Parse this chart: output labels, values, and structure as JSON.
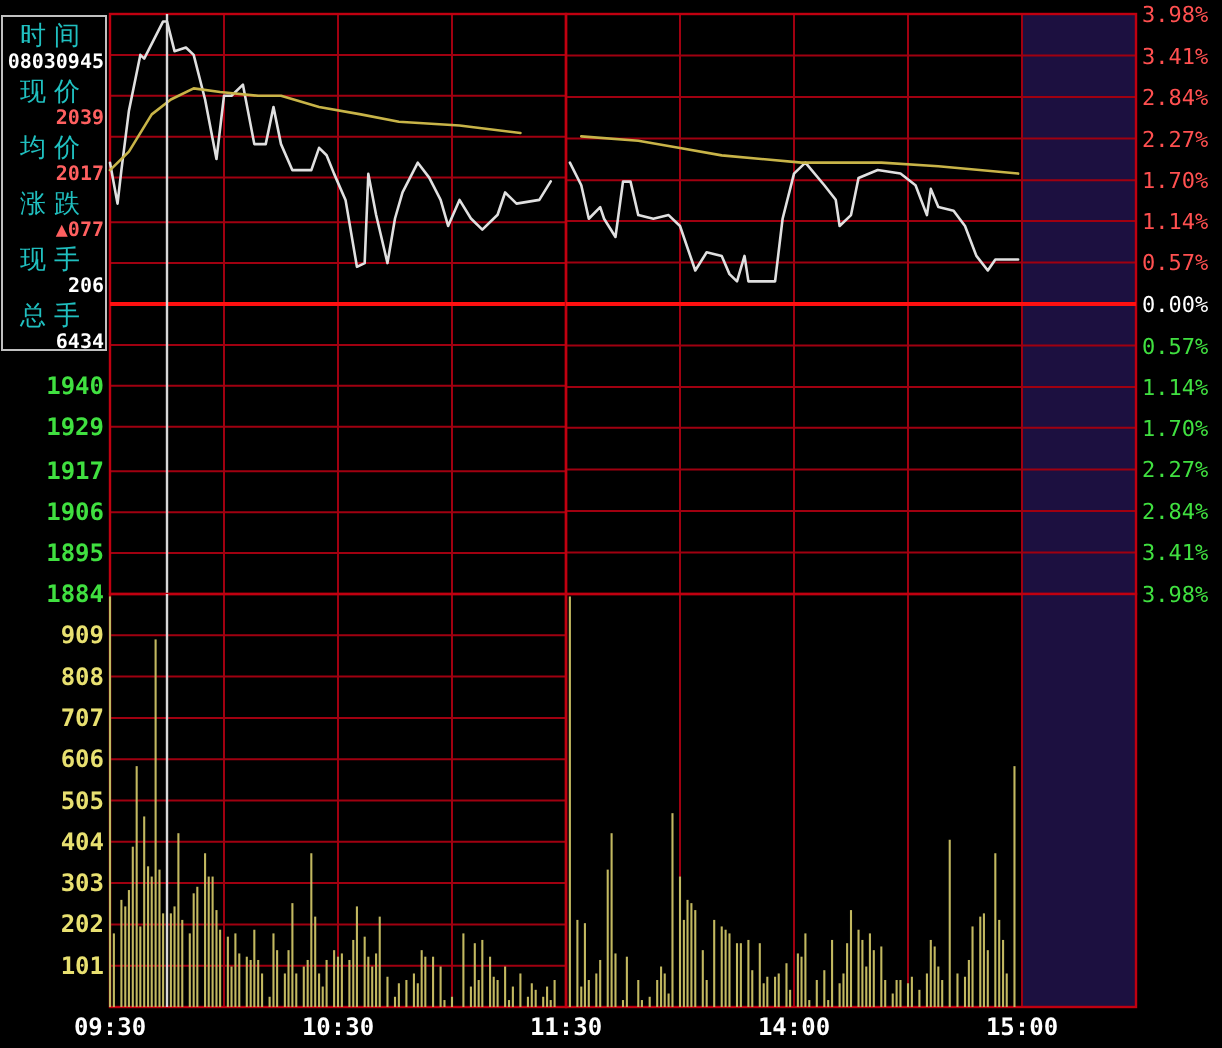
{
  "chart_data": [
    {
      "type": "line",
      "xlim": [
        9.5,
        11.5
      ],
      "ylim": [
        1884,
        2040
      ],
      "xticks": [
        {
          "value": 9.5,
          "label": null
        },
        {
          "value": 10,
          "label": null
        },
        {
          "value": 10.5,
          "label": null
        },
        {
          "value": 11,
          "label": null
        },
        {
          "value": 11.5,
          "label": null
        }
      ],
      "yticks": [
        1884,
        1895,
        1906,
        1917,
        1929,
        1940,
        {
          "value": 1951,
          "label": null
        },
        {
          "value": 1962,
          "label": null
        },
        {
          "value": 1973,
          "label": null
        },
        {
          "value": 1984,
          "label": null
        },
        {
          "value": 1996,
          "label": null
        },
        {
          "value": 2007,
          "label": null
        },
        {
          "value": 2018,
          "label": null
        },
        {
          "value": 2029,
          "label": null
        },
        {
          "value": 2040,
          "label": null
        }
      ],
      "tick_labels": "y",
      "grid": true,
      "series": [
        {
          "color": "#e0e0e0",
          "x": [
            9.5,
            9.533,
            9.55,
            9.583,
            9.633,
            9.65,
            9.733,
            9.75,
            9.783,
            9.833,
            9.867,
            9.917,
            9.967,
            10,
            10.033,
            10.083,
            10.133,
            10.183,
            10.217,
            10.25,
            10.3,
            10.383,
            10.417,
            10.45,
            10.483,
            10.533,
            10.583,
            10.617,
            10.633,
            10.667,
            10.717,
            10.75,
            10.783,
            10.85,
            10.9,
            10.95,
            10.983,
            11.033,
            11.083,
            11.133,
            11.2,
            11.233,
            11.283,
            11.383,
            11.433
          ],
          "values": [
            2000,
            1989,
            1998,
            2014,
            2029,
            2028,
            2038,
            2038,
            2030,
            2031,
            2029,
            2017,
            2001,
            2018,
            2018,
            2021,
            2005,
            2005,
            2015,
            2005,
            1998,
            1998,
            2004,
            2002,
            1997,
            1990,
            1972,
            1973,
            1997,
            1986,
            1973,
            1985,
            1992,
            2000,
            1996,
            1990,
            1983,
            1990,
            1985,
            1982,
            1986,
            1992,
            1989,
            1990,
            1995
          ]
        },
        {
          "color": "#c8b448",
          "x": [
            9.5,
            9.583,
            9.683,
            9.767,
            9.867,
            9.983,
            10.15,
            10.25,
            10.417,
            10.6,
            10.767,
            11.033,
            11.3
          ],
          "values": [
            1998,
            2003,
            2013,
            2017,
            2020,
            2019,
            2018,
            2018,
            2015,
            2013,
            2011,
            2010,
            2008
          ]
        }
      ],
      "ref_lines": [
        {
          "axis": "y",
          "value": 1962,
          "color": "#ff1010"
        },
        {
          "axis": "x",
          "value": 9.75,
          "color": "#d8d8d8"
        }
      ]
    },
    {
      "type": "line",
      "xlim": [
        13,
        15.5
      ],
      "ylim": [
        -3.98,
        3.98
      ],
      "xticks": [
        {
          "value": 13.5,
          "label": null
        },
        {
          "value": 14,
          "label": null
        },
        {
          "value": 14.5,
          "label": null
        },
        {
          "value": 15,
          "label": null
        }
      ],
      "yticks": [
        {
          "value": 3.98,
          "label": "3.98%"
        },
        {
          "value": 3.41,
          "label": "3.41%"
        },
        {
          "value": 2.84,
          "label": "2.84%"
        },
        {
          "value": 2.27,
          "label": "2.27%"
        },
        {
          "value": 1.7,
          "label": "1.70%"
        },
        {
          "value": 1.14,
          "label": "1.14%"
        },
        {
          "value": 0.57,
          "label": "0.57%"
        },
        {
          "value": 0,
          "label": "0.00%"
        },
        {
          "value": -0.57,
          "label": "0.57%"
        },
        {
          "value": -1.14,
          "label": "1.14%"
        },
        {
          "value": -1.7,
          "label": "1.70%"
        },
        {
          "value": -2.27,
          "label": "2.27%"
        },
        {
          "value": -2.84,
          "label": "2.84%"
        },
        {
          "value": -3.41,
          "label": "3.41%"
        },
        {
          "value": -3.98,
          "label": "3.98%"
        }
      ],
      "tick_labels": "y",
      "grid": true,
      "series": [
        {
          "color": "#e0e0e0",
          "x": [
            13.017,
            13.067,
            13.1,
            13.15,
            13.167,
            13.217,
            13.25,
            13.283,
            13.317,
            13.383,
            13.45,
            13.5,
            13.567,
            13.617,
            13.683,
            13.717,
            13.75,
            13.783,
            13.8,
            13.85,
            13.917,
            13.95,
            14,
            14.05,
            14.133,
            14.183,
            14.2,
            14.25,
            14.283,
            14.367,
            14.467,
            14.533,
            14.583,
            14.6,
            14.633,
            14.7,
            14.75,
            14.8,
            14.85,
            14.883,
            14.983
          ],
          "values": [
            1.94,
            1.63,
            1.17,
            1.33,
            1.17,
            0.92,
            1.68,
            1.68,
            1.22,
            1.17,
            1.22,
            1.07,
            0.46,
            0.71,
            0.66,
            0.41,
            0.31,
            0.66,
            0.31,
            0.31,
            0.31,
            1.17,
            1.79,
            1.94,
            1.63,
            1.43,
            1.07,
            1.22,
            1.73,
            1.84,
            1.79,
            1.63,
            1.22,
            1.58,
            1.33,
            1.28,
            1.07,
            0.66,
            0.46,
            0.61,
            0.61
          ]
        },
        {
          "color": "#c8b448",
          "x": [
            13.067,
            13.317,
            13.5,
            13.683,
            14.033,
            14.383,
            14.633,
            14.983
          ],
          "values": [
            2.3,
            2.24,
            2.14,
            2.04,
            1.94,
            1.94,
            1.89,
            1.79
          ]
        }
      ],
      "ref_lines": [
        {
          "axis": "y",
          "value": 0,
          "color": "#ff1010"
        }
      ],
      "bands": [
        {
          "axis": "x",
          "from": 15,
          "to": 15.5,
          "color": "#1c1040"
        }
      ]
    },
    {
      "type": "bar",
      "xlim": [
        9.5,
        11.5
      ],
      "ylim": [
        0,
        1010
      ],
      "xticks": [
        {
          "value": 9.5,
          "label": "09:30"
        },
        {
          "value": 10,
          "label": null
        },
        {
          "value": 10.5,
          "label": "10:30"
        },
        {
          "value": 11,
          "label": null
        },
        {
          "value": 11.5,
          "label": "11:30"
        }
      ],
      "yticks": [
        101,
        202,
        303,
        404,
        505,
        606,
        707,
        808,
        909
      ],
      "grid": true,
      "x": [
        9.5,
        9.517,
        9.55,
        9.567,
        9.583,
        9.6,
        9.617,
        9.633,
        9.65,
        9.667,
        9.683,
        9.7,
        9.717,
        9.733,
        9.767,
        9.783,
        9.8,
        9.817,
        9.85,
        9.867,
        9.883,
        9.917,
        9.933,
        9.95,
        9.967,
        9.983,
        10.017,
        10.033,
        10.05,
        10.067,
        10.1,
        10.117,
        10.133,
        10.15,
        10.167,
        10.2,
        10.217,
        10.233,
        10.267,
        10.283,
        10.3,
        10.317,
        10.35,
        10.367,
        10.383,
        10.4,
        10.417,
        10.433,
        10.45,
        10.483,
        10.5,
        10.517,
        10.55,
        10.567,
        10.583,
        10.617,
        10.633,
        10.65,
        10.667,
        10.683,
        10.717,
        10.75,
        10.767,
        10.8,
        10.833,
        10.85,
        10.867,
        10.883,
        10.917,
        10.95,
        10.967,
        11,
        11.05,
        11.083,
        11.1,
        11.117,
        11.133,
        11.167,
        11.183,
        11.2,
        11.233,
        11.25,
        11.267,
        11.3,
        11.333,
        11.35,
        11.367,
        11.4,
        11.417,
        11.433,
        11.45
      ],
      "values": [
        1004,
        180,
        262,
        246,
        286,
        392,
        589,
        197,
        466,
        344,
        319,
        899,
        336,
        229,
        229,
        246,
        425,
        213,
        180,
        278,
        294,
        376,
        319,
        319,
        237,
        189,
        172,
        99,
        180,
        131,
        123,
        115,
        189,
        115,
        82,
        25,
        180,
        139,
        82,
        139,
        254,
        82,
        99,
        115,
        376,
        221,
        82,
        50,
        115,
        139,
        123,
        131,
        115,
        164,
        246,
        172,
        123,
        99,
        131,
        221,
        74,
        25,
        58,
        66,
        82,
        58,
        139,
        123,
        123,
        99,
        17,
        25,
        180,
        50,
        156,
        66,
        164,
        123,
        74,
        66,
        99,
        17,
        50,
        82,
        25,
        58,
        42,
        25,
        50,
        17,
        66
      ],
      "color": "#c2b860",
      "ref_lines": [
        {
          "axis": "x",
          "value": 9.75,
          "color": "#d8d8d8"
        }
      ]
    },
    {
      "type": "bar",
      "xlim": [
        13,
        15.5
      ],
      "ylim": [
        0,
        1010
      ],
      "xticks": [
        {
          "value": 13.5,
          "label": null
        },
        {
          "value": 14,
          "label": "14:00"
        },
        {
          "value": 14.5,
          "label": null
        },
        {
          "value": 15,
          "label": "15:00"
        }
      ],
      "tick_labels": "x",
      "grid": true,
      "x": [
        13.017,
        13.05,
        13.067,
        13.083,
        13.1,
        13.133,
        13.15,
        13.183,
        13.2,
        13.217,
        13.25,
        13.267,
        13.317,
        13.333,
        13.367,
        13.4,
        13.417,
        13.433,
        13.45,
        13.467,
        13.5,
        13.517,
        13.533,
        13.55,
        13.567,
        13.6,
        13.617,
        13.65,
        13.683,
        13.7,
        13.717,
        13.75,
        13.767,
        13.8,
        13.817,
        13.85,
        13.867,
        13.883,
        13.917,
        13.933,
        13.967,
        13.983,
        14.017,
        14.033,
        14.05,
        14.067,
        14.1,
        14.133,
        14.15,
        14.167,
        14.2,
        14.217,
        14.233,
        14.25,
        14.283,
        14.3,
        14.317,
        14.333,
        14.35,
        14.383,
        14.4,
        14.433,
        14.45,
        14.467,
        14.5,
        14.517,
        14.55,
        14.583,
        14.6,
        14.617,
        14.633,
        14.65,
        14.683,
        14.717,
        14.75,
        14.767,
        14.783,
        14.817,
        14.833,
        14.85,
        14.883,
        14.9,
        14.917,
        14.933,
        14.967
      ],
      "values": [
        1004,
        213,
        50,
        205,
        66,
        82,
        115,
        336,
        425,
        131,
        17,
        123,
        66,
        17,
        25,
        66,
        99,
        82,
        33,
        474,
        319,
        213,
        262,
        254,
        237,
        139,
        66,
        213,
        197,
        189,
        180,
        156,
        156,
        164,
        90,
        156,
        58,
        74,
        74,
        82,
        107,
        42,
        131,
        123,
        180,
        17,
        66,
        90,
        17,
        164,
        58,
        82,
        156,
        237,
        189,
        164,
        99,
        180,
        139,
        148,
        66,
        33,
        66,
        66,
        58,
        74,
        42,
        82,
        164,
        148,
        99,
        66,
        409,
        82,
        74,
        115,
        197,
        221,
        229,
        139,
        376,
        213,
        164,
        82,
        589
      ],
      "color": "#c2b860",
      "bands": [
        {
          "axis": "x",
          "from": 15,
          "to": 15.5,
          "color": "#1c1040"
        }
      ]
    },
    {
      "type": "other",
      "annotations": [
        "时间",
        "08030945",
        "现价",
        "2039",
        "均价",
        "2017",
        "涨跌",
        "▲077",
        "现手",
        "206",
        "总手",
        "6434"
      ]
    }
  ]
}
